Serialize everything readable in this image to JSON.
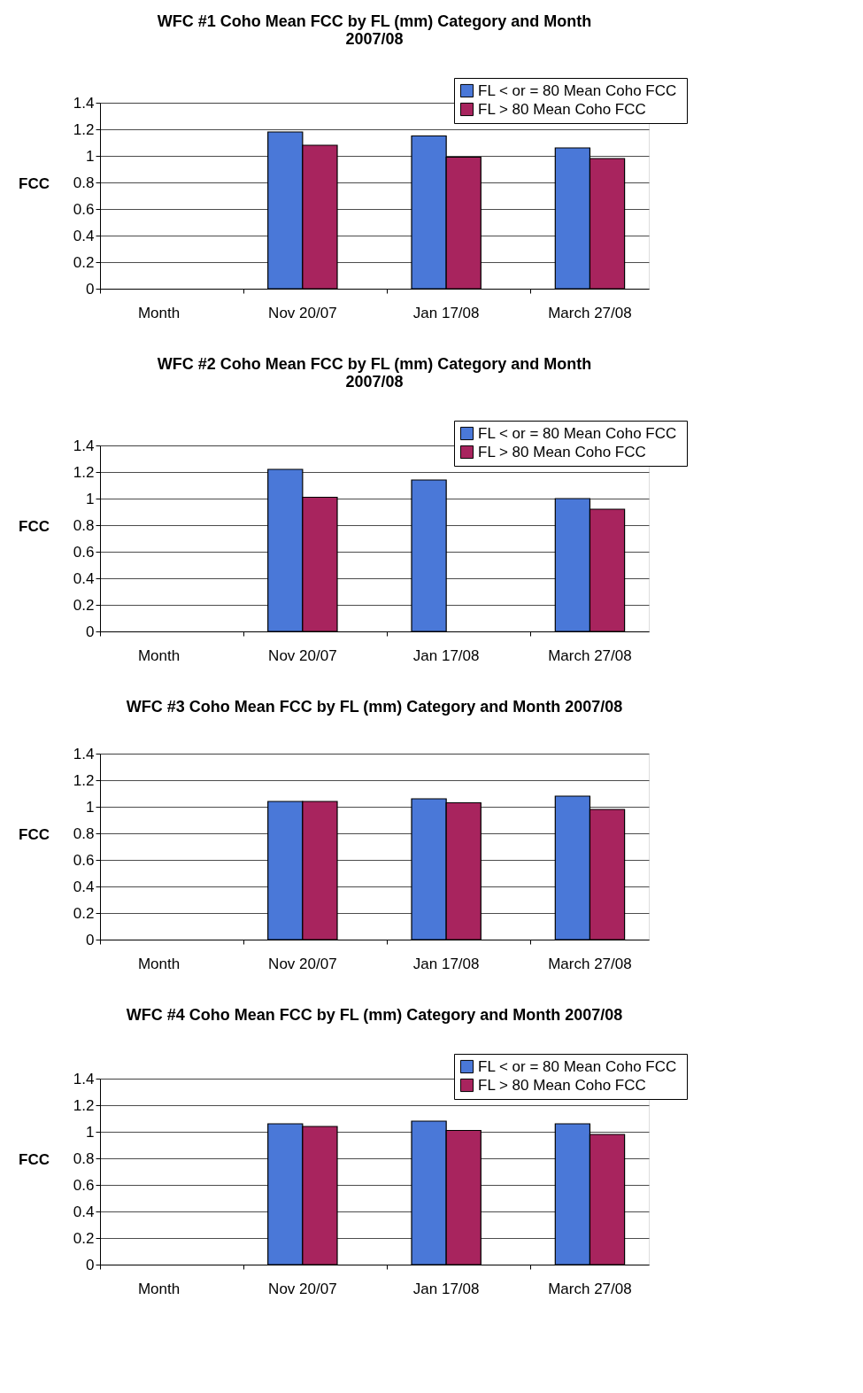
{
  "chart_data": [
    {
      "type": "bar",
      "title": "WFC #1 Coho Mean FCC by FL (mm) Category and Month\n2007/08",
      "ylabel": "FCC",
      "categories": [
        "Month",
        "Nov 20/07",
        "Jan 17/08",
        "March 27/08"
      ],
      "ylim": [
        0,
        1.4
      ],
      "yticks": [
        0,
        0.2,
        0.4,
        0.6,
        0.8,
        1,
        1.2,
        1.4
      ],
      "grid": "y",
      "legend": "top right",
      "series": [
        {
          "name": "FL < or = 80 Mean  Coho FCC",
          "color": "#4a78d8",
          "values": [
            null,
            1.18,
            1.15,
            1.06
          ]
        },
        {
          "name": "FL > 80 Mean Coho FCC",
          "color": "#a8245e",
          "values": [
            null,
            1.08,
            0.99,
            0.98
          ]
        }
      ]
    },
    {
      "type": "bar",
      "title": "WFC #2 Coho Mean FCC by FL (mm) Category and Month\n2007/08",
      "ylabel": "FCC",
      "categories": [
        "Month",
        "Nov 20/07",
        "Jan 17/08",
        "March 27/08"
      ],
      "ylim": [
        0,
        1.4
      ],
      "yticks": [
        0,
        0.2,
        0.4,
        0.6,
        0.8,
        1,
        1.2,
        1.4
      ],
      "grid": "y",
      "legend": "top right",
      "series": [
        {
          "name": "FL < or = 80 Mean  Coho FCC",
          "color": "#4a78d8",
          "values": [
            null,
            1.22,
            1.14,
            1.0
          ]
        },
        {
          "name": "FL > 80 Mean Coho FCC",
          "color": "#a8245e",
          "values": [
            null,
            1.01,
            null,
            0.92
          ]
        }
      ]
    },
    {
      "type": "bar",
      "title": "WFC #3 Coho Mean FCC by FL (mm) Category and Month 2007/08",
      "ylabel": "FCC",
      "categories": [
        "Month",
        "Nov 20/07",
        "Jan 17/08",
        "March 27/08"
      ],
      "ylim": [
        0,
        1.4
      ],
      "yticks": [
        0,
        0.2,
        0.4,
        0.6,
        0.8,
        1,
        1.2,
        1.4
      ],
      "grid": "y",
      "series": [
        {
          "color": "#4a78d8",
          "values": [
            null,
            1.04,
            1.06,
            1.08
          ]
        },
        {
          "color": "#a8245e",
          "values": [
            null,
            1.04,
            1.03,
            0.98
          ]
        }
      ]
    },
    {
      "type": "bar",
      "title": "WFC #4 Coho Mean FCC by FL (mm) Category and Month 2007/08",
      "ylabel": "FCC",
      "categories": [
        "Month",
        "Nov 20/07",
        "Jan 17/08",
        "March 27/08"
      ],
      "ylim": [
        0,
        1.4
      ],
      "yticks": [
        0,
        0.2,
        0.4,
        0.6,
        0.8,
        1,
        1.2,
        1.4
      ],
      "grid": "y",
      "legend": "top right",
      "series": [
        {
          "name": "FL < or = 80 Mean  Coho FCC",
          "color": "#4a78d8",
          "values": [
            null,
            1.06,
            1.08,
            1.06
          ]
        },
        {
          "name": "FL > 80 Mean Coho FCC",
          "color": "#a8245e",
          "values": [
            null,
            1.04,
            1.01,
            0.98
          ]
        }
      ]
    }
  ]
}
